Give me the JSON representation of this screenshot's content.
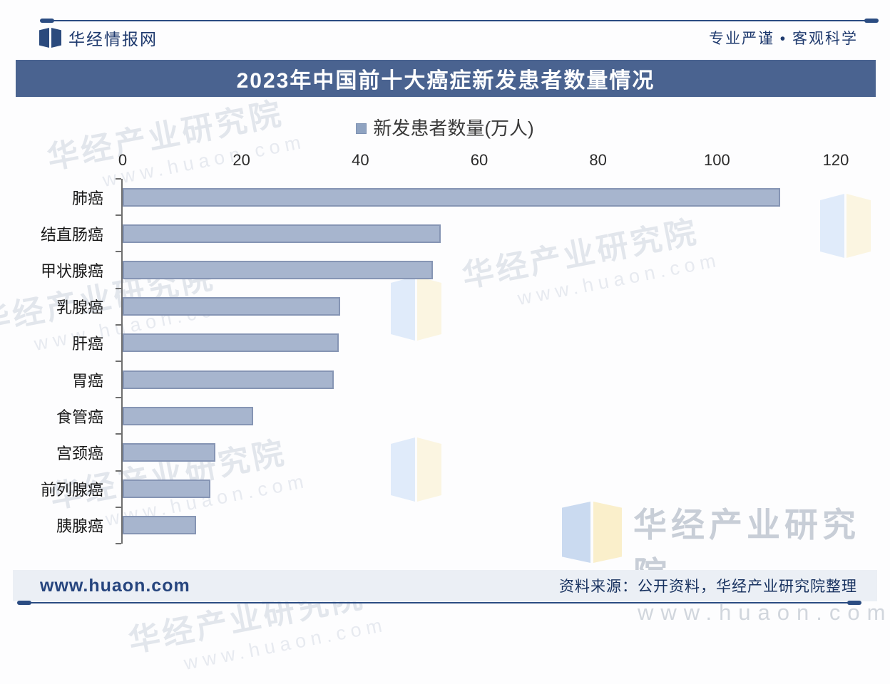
{
  "header": {
    "brand": "华经情报网",
    "slogan": "专业严谨 • 客观科学"
  },
  "title": "2023年中国前十大癌症新发患者数量情况",
  "chart_data": {
    "type": "bar",
    "orientation": "horizontal",
    "title": "2023年中国前十大癌症新发患者数量情况",
    "legend": "新发患者数量(万人)",
    "legend_position": "top",
    "categories": [
      "肺癌",
      "结直肠癌",
      "甲状腺癌",
      "乳腺癌",
      "肝癌",
      "胃癌",
      "食管癌",
      "宫颈癌",
      "前列腺癌",
      "胰腺癌"
    ],
    "values": [
      110.6,
      53.5,
      52.2,
      36.6,
      36.3,
      35.5,
      22.0,
      15.6,
      14.7,
      12.4
    ],
    "xlabel": "",
    "ylabel": "",
    "xlim": [
      0,
      120
    ],
    "x_ticks": [
      0,
      20,
      40,
      60,
      80,
      100,
      120
    ],
    "grid": false
  },
  "footer": {
    "website": "www.huaon.com",
    "source": "资料来源：公开资料，华经产业研究院整理"
  },
  "watermark": {
    "name": "华经产业研究院",
    "url": "www.huaon.com"
  },
  "colors": {
    "accent": "#2b4c82",
    "title_bar": "#4a6390",
    "bar_fill": "#a7b5ce",
    "bar_border": "#8695b4",
    "legend_square": "#8fa3c1",
    "footer_bg": "#ebeff5",
    "header_text": "#1f3a6e"
  }
}
